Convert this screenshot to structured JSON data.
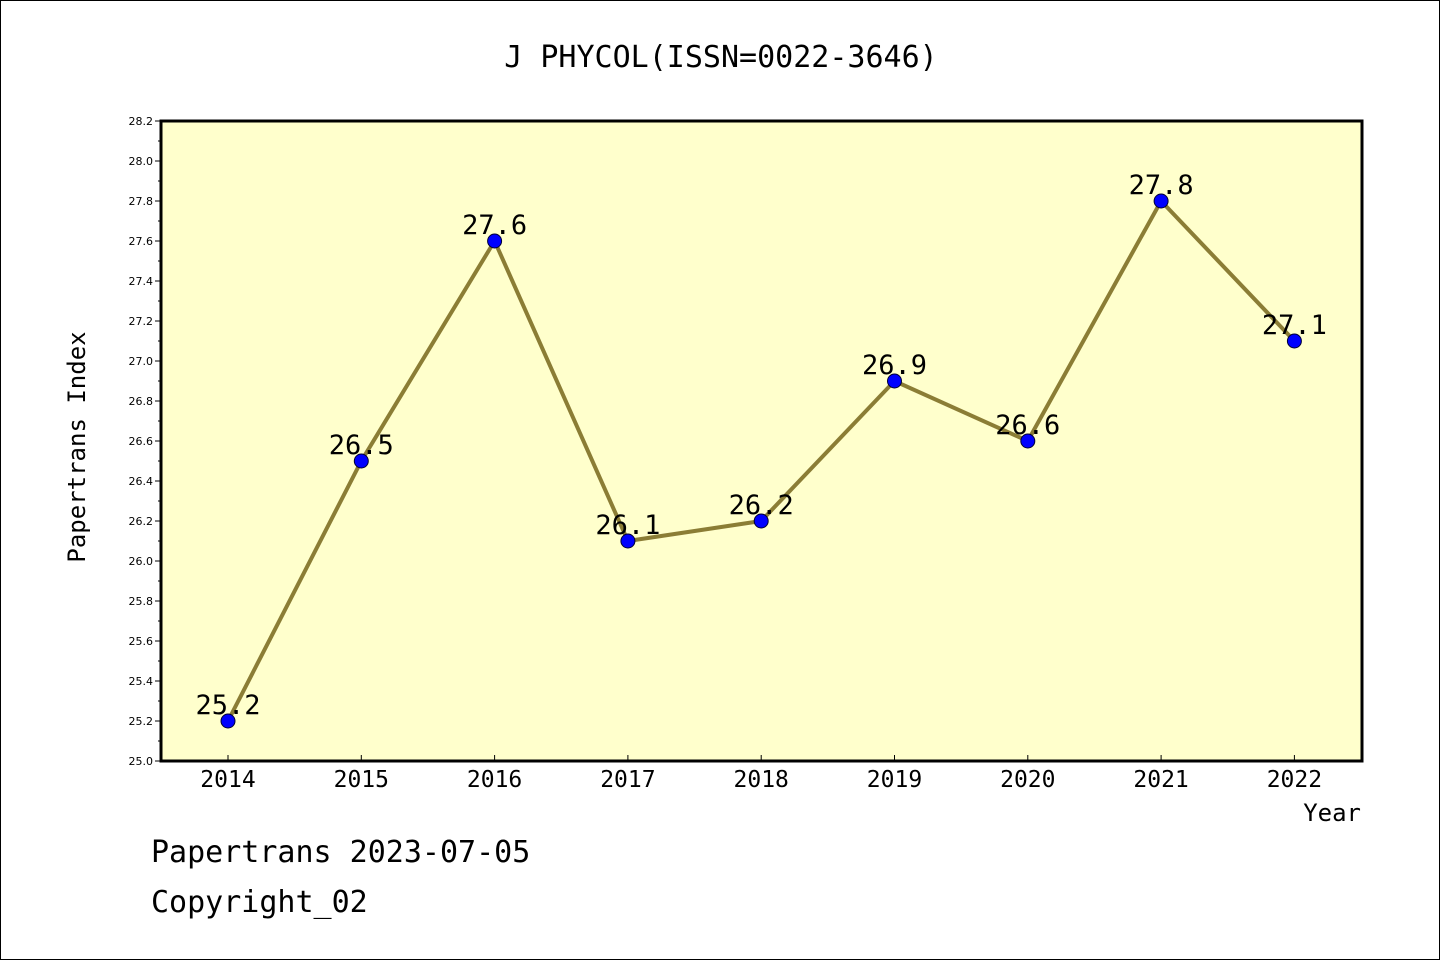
{
  "chart_data": {
    "type": "line",
    "title": "J PHYCOL(ISSN=0022-3646)",
    "xlabel": "Year",
    "ylabel": "Papertrans Index",
    "categories": [
      "2014",
      "2015",
      "2016",
      "2017",
      "2018",
      "2019",
      "2020",
      "2021",
      "2022"
    ],
    "series": [
      {
        "values": [
          25.2,
          26.5,
          27.6,
          26.1,
          26.2,
          26.9,
          26.6,
          27.8,
          27.1
        ],
        "data_labels": [
          "25.2",
          "26.5",
          "27.6",
          "26.1",
          "26.2",
          "26.9",
          "26.6",
          "27.8",
          "27.1"
        ]
      }
    ],
    "ylim": [
      25.0,
      28.2
    ],
    "yticks": [
      "25.0",
      "25.2",
      "25.4",
      "25.6",
      "25.8",
      "26.0",
      "26.2",
      "26.4",
      "26.6",
      "26.8",
      "27.0",
      "27.2",
      "27.4",
      "27.6",
      "27.8",
      "28.0",
      "28.2"
    ],
    "grid": false,
    "legend": "none"
  },
  "colors": {
    "plot_background": "#ffffcc",
    "line": "#8b7d35",
    "marker": "#0000ff",
    "axis": "#000000"
  },
  "footer": {
    "line1": "Papertrans 2023-07-05",
    "line2": "Copyright_02"
  }
}
